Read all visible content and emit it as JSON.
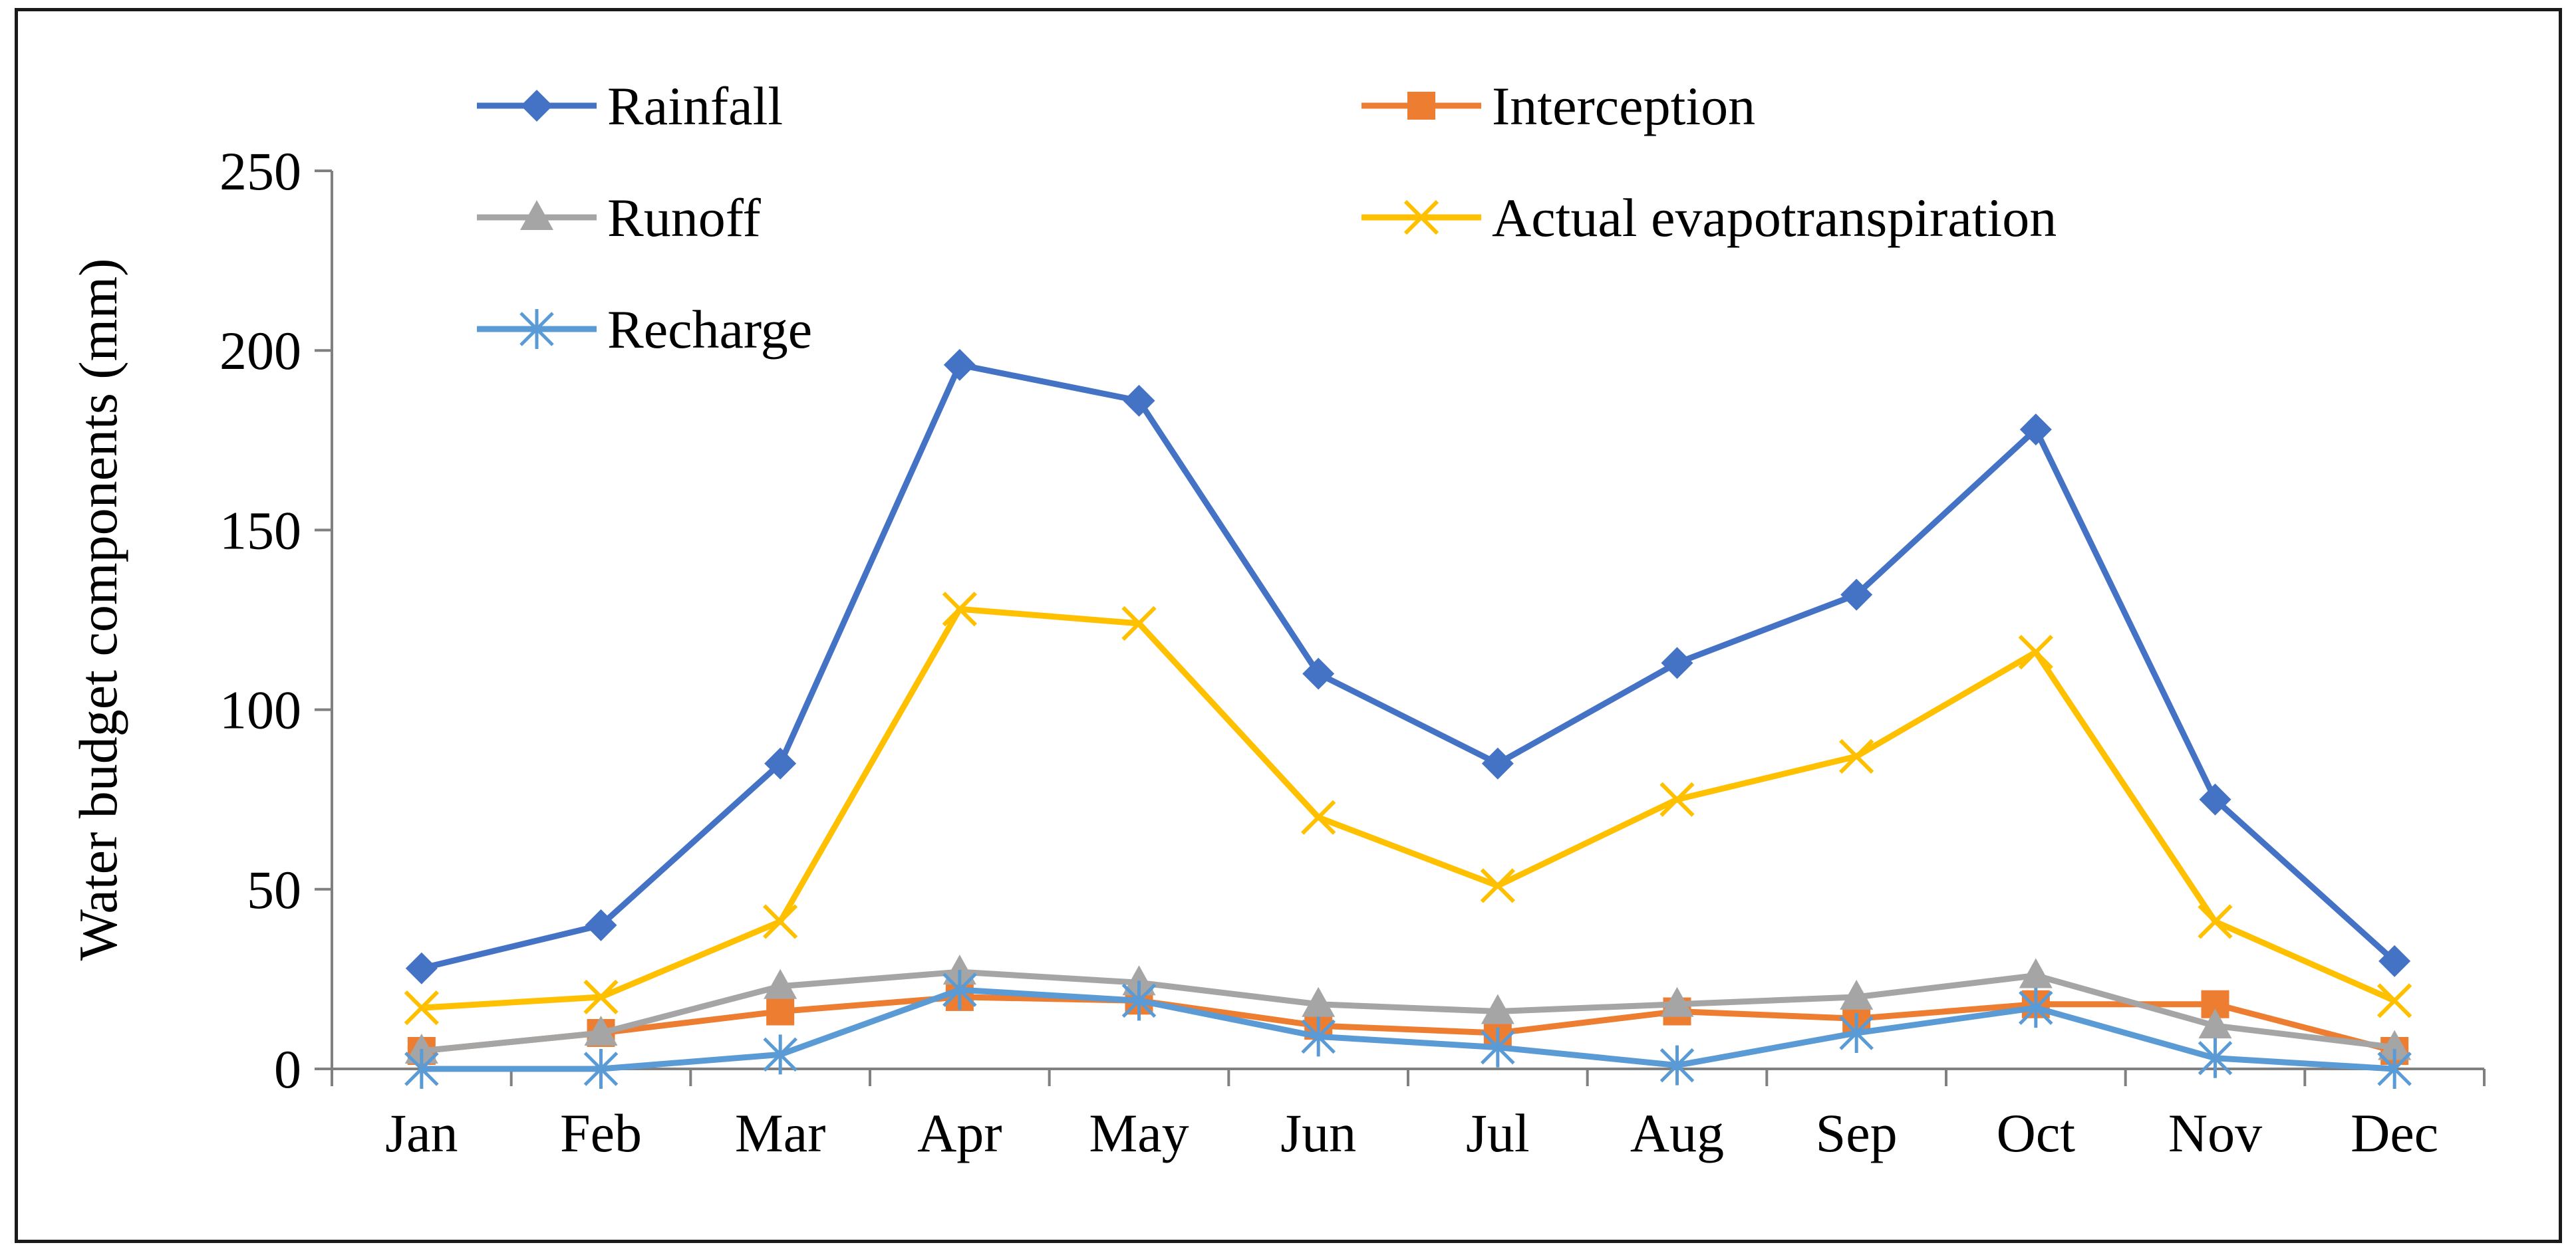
{
  "chart_data": {
    "type": "line",
    "title": "",
    "xlabel": "",
    "ylabel": "Water budget components (mm)",
    "ylim": [
      0,
      250
    ],
    "yticks": [
      0,
      50,
      100,
      150,
      200,
      250
    ],
    "grid": false,
    "legend_position": "top",
    "categories": [
      "Jan",
      "Feb",
      "Mar",
      "Apr",
      "May",
      "Jun",
      "Jul",
      "Aug",
      "Sep",
      "Oct",
      "Nov",
      "Dec"
    ],
    "series": [
      {
        "name": "Rainfall",
        "color": "#4472C4",
        "marker": "diamond",
        "values": [
          28,
          40,
          85,
          196,
          186,
          110,
          85,
          113,
          132,
          178,
          75,
          30
        ]
      },
      {
        "name": "Interception",
        "color": "#ED7D31",
        "marker": "square",
        "values": [
          5,
          10,
          16,
          20,
          19,
          12,
          10,
          16,
          14,
          18,
          18,
          5
        ]
      },
      {
        "name": "Runoff",
        "color": "#A5A5A5",
        "marker": "triangle",
        "values": [
          5,
          10,
          23,
          27,
          24,
          18,
          16,
          18,
          20,
          26,
          12,
          6
        ]
      },
      {
        "name": "Actual evapotranspiration",
        "color": "#FFC000",
        "marker": "x",
        "values": [
          17,
          20,
          41,
          128,
          124,
          70,
          51,
          75,
          87,
          116,
          41,
          19
        ]
      },
      {
        "name": "Recharge",
        "color": "#5B9BD5",
        "marker": "star",
        "values": [
          0,
          0,
          4,
          22,
          19,
          9,
          6,
          1,
          10,
          17,
          3,
          0
        ]
      }
    ]
  }
}
